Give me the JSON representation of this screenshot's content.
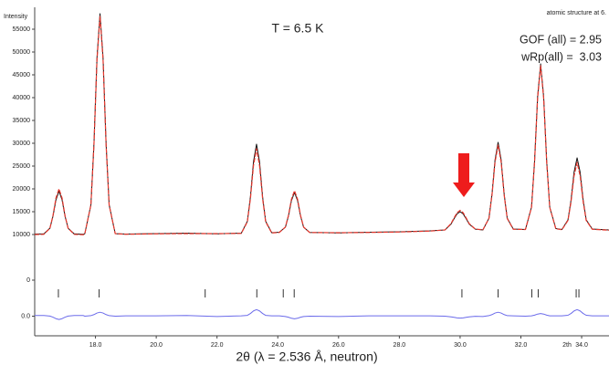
{
  "chart_data": {
    "type": "line",
    "title": "atomic structure at 6.",
    "ylabel": "Intensity",
    "xlabel": "2θ (λ = 2.536 Å, neutron)",
    "xunit": "2th",
    "annotations": [
      "T = 6.5 K",
      "GOF (all) = 2.95",
      "wRp(all) =  3.03"
    ],
    "xlim": [
      16,
      34.9
    ],
    "xticks": [
      {
        "value": 18,
        "label": "18.0"
      },
      {
        "value": 20,
        "label": "20.0"
      },
      {
        "value": 22,
        "label": "22.0"
      },
      {
        "value": 24,
        "label": "24.0"
      },
      {
        "value": 26,
        "label": "26.0"
      },
      {
        "value": 28,
        "label": "28.0"
      },
      {
        "value": 30,
        "label": "30.0"
      },
      {
        "value": 32,
        "label": "32.0"
      },
      {
        "value": 34,
        "label": "34.0"
      }
    ],
    "ylim": [
      -3600,
      59400
    ],
    "yticks": [
      0,
      10000,
      15000,
      20000,
      25000,
      30000,
      35000,
      40000,
      45000,
      50000,
      55000
    ],
    "y2lim": [
      -3000,
      3000
    ],
    "y2ticks": [
      {
        "value": 0,
        "label": "0.0"
      }
    ],
    "x": [
      16.0,
      16.3,
      16.5,
      16.6,
      16.7,
      16.8,
      16.9,
      17.0,
      17.1,
      17.3,
      17.6,
      17.65,
      17.85,
      17.95,
      18.05,
      18.15,
      18.25,
      18.35,
      18.45,
      18.65,
      19.0,
      20.0,
      21.0,
      22.0,
      22.8,
      23.0,
      23.1,
      23.2,
      23.3,
      23.4,
      23.5,
      23.6,
      23.8,
      24.05,
      24.25,
      24.35,
      24.45,
      24.55,
      24.65,
      24.75,
      24.85,
      25.05,
      26.0,
      27.0,
      28.0,
      29.0,
      29.5,
      29.7,
      29.8,
      29.9,
      30.0,
      30.1,
      30.2,
      30.3,
      30.5,
      30.75,
      30.95,
      31.05,
      31.15,
      31.25,
      31.35,
      31.45,
      31.55,
      31.75,
      32.15,
      32.35,
      32.45,
      32.55,
      32.65,
      32.75,
      32.85,
      32.95,
      33.15,
      33.35,
      33.55,
      33.65,
      33.75,
      33.85,
      33.95,
      34.05,
      34.15,
      34.35,
      34.9
    ],
    "series": [
      {
        "color": "#111111",
        "values": [
          10100,
          10140,
          11370,
          13950,
          17620,
          19500,
          17620,
          13950,
          11370,
          10140,
          10050,
          10190,
          16530,
          29840,
          48720,
          58400,
          48720,
          29840,
          16530,
          10190,
          10100,
          10200,
          10300,
          10150,
          10300,
          12930,
          18300,
          25900,
          29800,
          25900,
          18300,
          12930,
          10400,
          10500,
          11590,
          14010,
          17440,
          19200,
          17440,
          14010,
          11590,
          10440,
          10350,
          10500,
          10600,
          10800,
          11000,
          12280,
          13440,
          14520,
          15000,
          14520,
          13440,
          12280,
          11180,
          11000,
          13590,
          18870,
          26360,
          30200,
          26360,
          18870,
          13590,
          11200,
          11100,
          16000,
          25980,
          40140,
          47400,
          40140,
          25980,
          16000,
          11300,
          11100,
          13220,
          17540,
          23660,
          26800,
          23660,
          17540,
          13220,
          11200,
          11000
        ]
      },
      {
        "color": "#e8382e",
        "values": [
          10000,
          10040,
          11350,
          14100,
          18000,
          20000,
          18000,
          14100,
          11350,
          10040,
          9950,
          10190,
          16450,
          29600,
          48240,
          57800,
          48240,
          29600,
          16450,
          10190,
          10050,
          10150,
          10200,
          10200,
          10250,
          12800,
          17890,
          25100,
          28800,
          25100,
          17890,
          12800,
          10350,
          10450,
          11640,
          14170,
          17760,
          19600,
          17760,
          14170,
          11640,
          10440,
          10400,
          10450,
          10550,
          10750,
          11000,
          12380,
          13620,
          14780,
          15300,
          14780,
          13620,
          12380,
          11190,
          11050,
          13510,
          18630,
          25880,
          29600,
          25880,
          18630,
          13510,
          11150,
          11100,
          15950,
          25820,
          39820,
          47000,
          39820,
          25820,
          15950,
          11250,
          11050,
          13080,
          17130,
          22860,
          25800,
          22860,
          17130,
          13080,
          11150,
          10950
        ]
      },
      {
        "color": "#6b6bea",
        "axis": "y2",
        "values": [
          100,
          100,
          20,
          -150,
          -380,
          -500,
          -380,
          -150,
          20,
          100,
          100,
          0,
          80,
          240,
          480,
          600,
          480,
          240,
          80,
          0,
          50,
          50,
          100,
          -50,
          50,
          130,
          410,
          800,
          1000,
          800,
          410,
          130,
          50,
          50,
          -50,
          -160,
          -320,
          -400,
          -320,
          -160,
          -50,
          0,
          -50,
          50,
          50,
          50,
          0,
          -100,
          -180,
          -260,
          -300,
          -260,
          -180,
          -100,
          -10,
          -50,
          80,
          240,
          480,
          600,
          480,
          240,
          80,
          50,
          0,
          50,
          160,
          320,
          400,
          320,
          160,
          50,
          50,
          50,
          140,
          410,
          800,
          1000,
          800,
          410,
          140,
          50,
          50
        ]
      }
    ],
    "reflections": [
      16.78,
      18.12,
      21.61,
      23.31,
      24.18,
      24.54,
      30.06,
      31.25,
      32.36,
      32.57,
      33.82,
      33.91
    ]
  }
}
